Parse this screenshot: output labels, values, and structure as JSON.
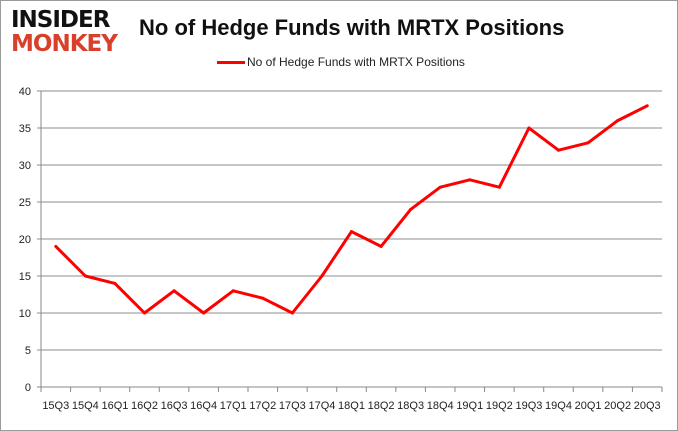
{
  "logo": {
    "line1": "INSIDER",
    "line2": "MONKEY"
  },
  "chart_data": {
    "type": "line",
    "title": "No of Hedge Funds with MRTX Positions",
    "categories": [
      "15Q3",
      "15Q4",
      "16Q1",
      "16Q2",
      "16Q3",
      "16Q4",
      "17Q1",
      "17Q2",
      "17Q3",
      "17Q4",
      "18Q1",
      "18Q2",
      "18Q3",
      "18Q4",
      "19Q1",
      "19Q2",
      "19Q3",
      "19Q4",
      "20Q1",
      "20Q2",
      "20Q3"
    ],
    "series": [
      {
        "name": "No of Hedge Funds with MRTX Positions",
        "values": [
          19,
          15,
          14,
          10,
          13,
          10,
          13,
          12,
          10,
          15,
          21,
          19,
          24,
          27,
          28,
          27,
          35,
          32,
          33,
          36,
          38
        ],
        "color": "#ff0000"
      }
    ],
    "ylim": [
      0,
      40
    ],
    "yticks": [
      0,
      5,
      10,
      15,
      20,
      25,
      30,
      35,
      40
    ],
    "grid": true,
    "legend": "top"
  }
}
